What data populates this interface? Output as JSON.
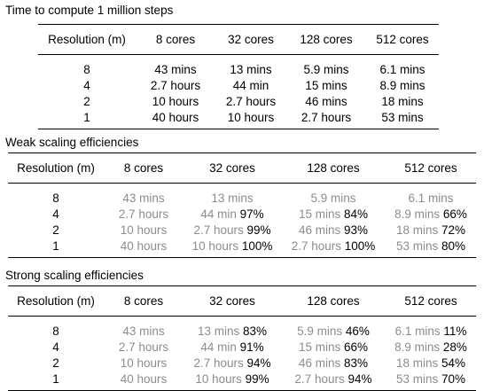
{
  "time_table": {
    "title": "Time to compute 1 million steps",
    "headers": [
      "Resolution (m)",
      "8 cores",
      "32 cores",
      "128 cores",
      "512 cores"
    ],
    "rows": [
      [
        "8",
        "43 mins",
        "13 mins",
        "5.9 mins",
        "6.1 mins"
      ],
      [
        "4",
        "2.7 hours",
        "44 min",
        "15 mins",
        "8.9 mins"
      ],
      [
        "2",
        "10 hours",
        "2.7 hours",
        "46 mins",
        "18 mins"
      ],
      [
        "1",
        "40 hours",
        "10 hours",
        "2.7 hours",
        "53 mins"
      ]
    ]
  },
  "weak_table": {
    "title": "Weak scaling efficiencies",
    "headers": [
      "Resolution (m)",
      "8 cores",
      "32 cores",
      "128 cores",
      "512 cores"
    ],
    "rows": [
      [
        "8",
        "43 mins",
        "",
        "13 mins",
        "",
        "5.9 mins",
        "",
        "6.1 mins",
        ""
      ],
      [
        "4",
        "2.7 hours",
        "",
        "44 min",
        "97%",
        "15 mins",
        "84%",
        "8.9 mins",
        "66%"
      ],
      [
        "2",
        "10 hours",
        "",
        "2.7 hours",
        "99%",
        "46 mins",
        "93%",
        "18 mins",
        "72%"
      ],
      [
        "1",
        "40 hours",
        "",
        "10 hours",
        "100%",
        "2.7 hours",
        "100%",
        "53 mins",
        "80%"
      ]
    ]
  },
  "strong_table": {
    "title": "Strong scaling efficiencies",
    "headers": [
      "Resolution (m)",
      "8 cores",
      "32 cores",
      "128 cores",
      "512 cores"
    ],
    "rows": [
      [
        "8",
        "43 mins",
        "",
        "13 mins",
        "83%",
        "5.9 mins",
        "46%",
        "6.1 mins",
        "11%"
      ],
      [
        "4",
        "2.7 hours",
        "",
        "44 min",
        "91%",
        "15 mins",
        "66%",
        "8.9 mins",
        "28%"
      ],
      [
        "2",
        "10 hours",
        "",
        "2.7 hours",
        "94%",
        "46 mins",
        "83%",
        "18 mins",
        "54%"
      ],
      [
        "1",
        "40 hours",
        "",
        "10 hours",
        "99%",
        "2.7 hours",
        "94%",
        "53 mins",
        "70%"
      ]
    ]
  },
  "colors": {
    "text": "#000000",
    "muted_time": "#8c8c8c"
  }
}
